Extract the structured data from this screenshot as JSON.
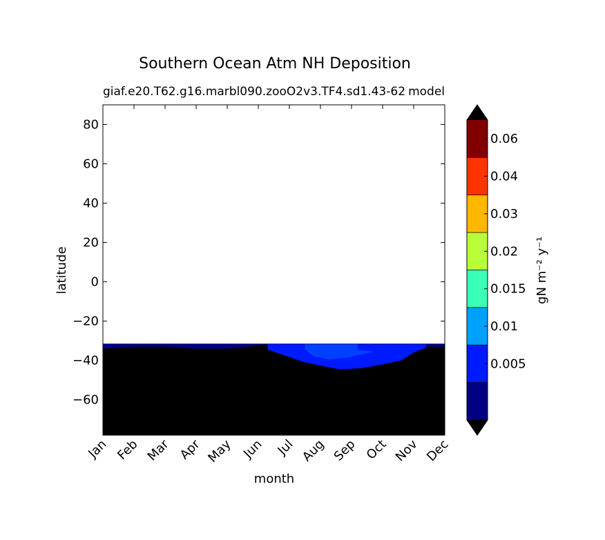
{
  "chart_data": {
    "type": "heatmap",
    "title": "Southern Ocean Atm NH Deposition",
    "subtitle_left": "giaf.e20.T62.g16.marbl090.zooO2v3.TF4.sd1.43-62",
    "subtitle_right": "model",
    "xlabel": "month",
    "ylabel": "latitude",
    "x_categories": [
      "Jan",
      "Feb",
      "Mar",
      "Apr",
      "May",
      "Jun",
      "Jul",
      "Aug",
      "Sep",
      "Oct",
      "Nov",
      "Dec"
    ],
    "xlim": [
      0,
      11
    ],
    "ylim": [
      -78,
      90
    ],
    "y_ticks": [
      80,
      60,
      40,
      20,
      0,
      -20,
      -40,
      -60
    ],
    "y_tick_labels": [
      "80",
      "60",
      "40",
      "20",
      "0",
      "−20",
      "−40",
      "−60"
    ],
    "data_region_lat": [
      -78,
      -31.5
    ],
    "regions": [
      {
        "name": "0-0.005",
        "color": "#000080",
        "boundary": [
          [
            0,
            -34
          ],
          [
            1,
            -33
          ],
          [
            2,
            -33
          ],
          [
            3,
            -34
          ],
          [
            4,
            -34
          ],
          [
            4.7,
            -33
          ],
          [
            5,
            -32
          ],
          [
            7,
            -32
          ],
          [
            8,
            -32.5
          ],
          [
            9,
            -32.5
          ],
          [
            10,
            -33
          ],
          [
            11,
            -33
          ]
        ]
      },
      {
        "name": "0.005-0.01",
        "color": "#001aff",
        "boundary": [
          [
            5.3,
            -34.5
          ],
          [
            6.5,
            -41
          ],
          [
            7.6,
            -44.5
          ],
          [
            8.3,
            -44
          ],
          [
            9,
            -42
          ],
          [
            9.6,
            -40
          ],
          [
            10,
            -36
          ],
          [
            10.4,
            -33.5
          ]
        ]
      },
      {
        "name": "0.01-0.015",
        "color": "#0040ff",
        "boundary": [
          [
            6.5,
            -34.5
          ],
          [
            6.8,
            -38
          ],
          [
            7.3,
            -39.5
          ],
          [
            7.9,
            -38.5
          ],
          [
            8.7,
            -35.5
          ],
          [
            8.2,
            -34.5
          ]
        ]
      }
    ],
    "colorbar": {
      "label": "gN m⁻² y⁻¹",
      "extend": "both",
      "extend_colors": {
        "under": "#000000",
        "over": "#000000"
      },
      "levels": [
        {
          "color": "#000080",
          "label": ""
        },
        {
          "color": "#001aff",
          "label": "0.005"
        },
        {
          "color": "#00a0ff",
          "label": "0.01"
        },
        {
          "color": "#3affb8",
          "label": "0.015"
        },
        {
          "color": "#b8ff3a",
          "label": "0.02"
        },
        {
          "color": "#ffb700",
          "label": "0.03"
        },
        {
          "color": "#ff3300",
          "label": "0.04"
        },
        {
          "color": "#800000",
          "label": "0.06"
        }
      ]
    }
  }
}
